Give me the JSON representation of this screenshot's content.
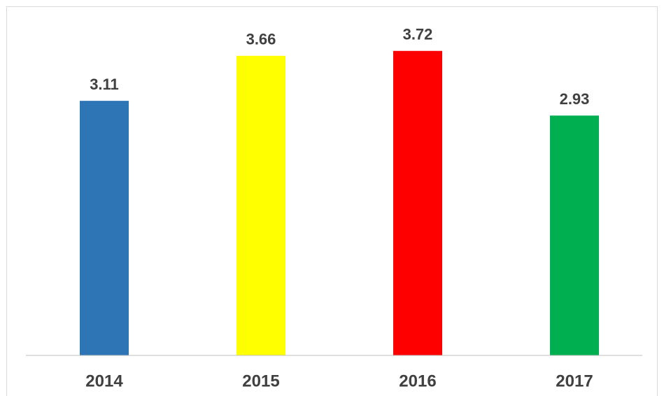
{
  "chart_data": {
    "type": "bar",
    "categories": [
      "2014",
      "2015",
      "2016",
      "2017"
    ],
    "values": [
      3.11,
      3.66,
      3.72,
      2.93
    ],
    "colors": [
      "#2e75b6",
      "#ffff00",
      "#ff0000",
      "#00b050"
    ],
    "ylim": [
      0,
      4
    ],
    "grid": false
  }
}
